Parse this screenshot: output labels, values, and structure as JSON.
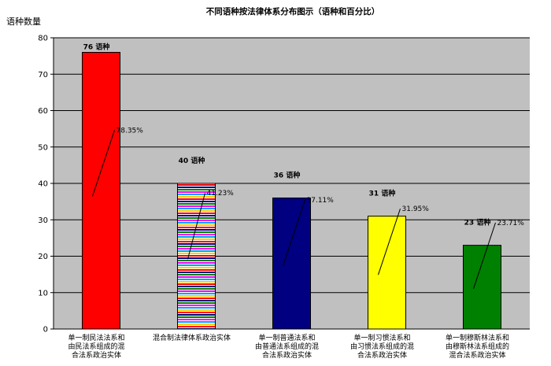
{
  "chart_data": {
    "type": "bar",
    "title": "不同语种按法律体系分布图示（语种和百分比）",
    "ylabel": "语种数量",
    "ylim": [
      0,
      80
    ],
    "yticks": [
      0,
      10,
      20,
      30,
      40,
      50,
      60,
      70,
      80
    ],
    "grid": true,
    "legend": "none",
    "plot_background": "#c0c0c0",
    "categories": [
      [
        "单一制民法法系和",
        "由民法系组成的混",
        "合法系政治实体"
      ],
      [
        "混合制法律体系政治实体"
      ],
      [
        "单一制普通法系和",
        "由普通法系组成的混",
        "合法系政治实体"
      ],
      [
        "单一制习惯法系和",
        "由习惯法系组成的混",
        "合法系政治实体"
      ],
      [
        "单一制穆斯林法系和",
        "由穆斯林法系组成的",
        "混合法系政治实体"
      ]
    ],
    "values": [
      76,
      40,
      36,
      31,
      23
    ],
    "value_labels": [
      "76 语种",
      "40 语种",
      "36 语种",
      "31 语种",
      "23 语种"
    ],
    "percentages": [
      "78.35%",
      "41.23%",
      "37.11%",
      "31.95%",
      "23.71%"
    ],
    "colors": [
      "#ff0000",
      "striped",
      "#000080",
      "#ffff00",
      "#008000"
    ]
  }
}
